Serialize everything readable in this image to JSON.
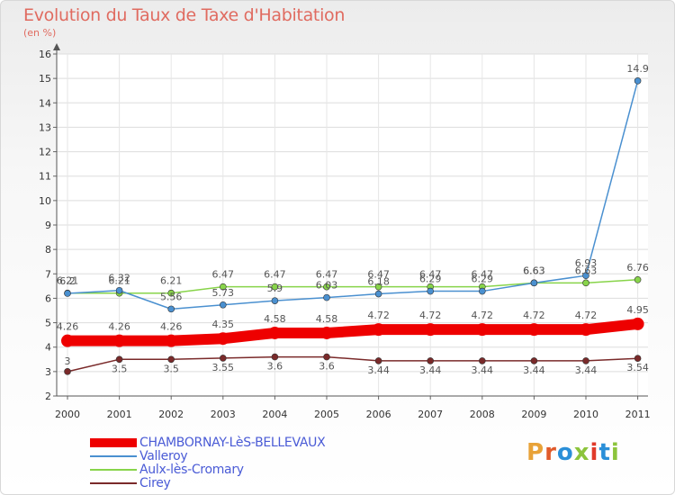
{
  "header": {
    "title": "Evolution du Taux de Taxe d'Habitation",
    "unit": "(en %)"
  },
  "logo": {
    "text": "Proxiti",
    "colors": [
      "#e8a238",
      "#e05a2a",
      "#2a8fd8",
      "#8cc43c",
      "#e03a2a",
      "#2a8fd8",
      "#8cc43c"
    ]
  },
  "chart_data": {
    "type": "line",
    "title": "Evolution du Taux de Taxe d'Habitation",
    "ylabel": "(en %)",
    "xlabel": "",
    "ylim": [
      2,
      16
    ],
    "yticks": [
      2,
      3,
      4,
      5,
      6,
      7,
      8,
      9,
      10,
      11,
      12,
      13,
      14,
      15,
      16
    ],
    "grid": true,
    "legend": "bottom-left",
    "x": [
      "2000",
      "2001",
      "2002",
      "2003",
      "2004",
      "2005",
      "2006",
      "2007",
      "2008",
      "2009",
      "2010",
      "2011"
    ],
    "series": [
      {
        "name": "CHAMBORNAY-LèS-BELLEVAUX",
        "color": "#ee0000",
        "values": [
          4.26,
          4.26,
          4.26,
          4.35,
          4.58,
          4.58,
          4.72,
          4.72,
          4.72,
          4.72,
          4.72,
          4.95
        ],
        "labels": [
          "4.26",
          "4.26",
          "4.26",
          "4.35",
          "4.58",
          "4.58",
          "4.72",
          "4.72",
          "4.72",
          "4.72",
          "4.72",
          "4.95"
        ]
      },
      {
        "name": "Valleroy",
        "color": "#4a90d0",
        "values": [
          6.2,
          6.32,
          5.56,
          5.73,
          5.9,
          6.03,
          6.18,
          6.29,
          6.29,
          6.63,
          6.93,
          14.9
        ],
        "labels": [
          "6.2",
          "6.32",
          "5.56",
          "5.73",
          "5.9",
          "6.03",
          "6.18",
          "6.29",
          "6.29",
          "6.63",
          "6.93",
          "14.9"
        ]
      },
      {
        "name": "Aulx-lès-Cromary",
        "color": "#88d44a",
        "values": [
          6.21,
          6.21,
          6.21,
          6.47,
          6.47,
          6.47,
          6.47,
          6.47,
          6.47,
          6.63,
          6.63,
          6.76
        ],
        "labels": [
          "6.21",
          "6.21",
          "6.21",
          "6.47",
          "6.47",
          "6.47",
          "6.47",
          "6.47",
          "6.47",
          "6.63",
          "6.63",
          "6.76"
        ]
      },
      {
        "name": "Cirey",
        "color": "#7a2a2a",
        "values": [
          3.0,
          3.5,
          3.5,
          3.55,
          3.6,
          3.6,
          3.44,
          3.44,
          3.44,
          3.44,
          3.44,
          3.54
        ],
        "labels": [
          "3",
          "3.5",
          "3.5",
          "3.55",
          "3.6",
          "3.6",
          "3.44",
          "3.44",
          "3.44",
          "3.44",
          "3.44",
          "3.54"
        ]
      }
    ]
  }
}
